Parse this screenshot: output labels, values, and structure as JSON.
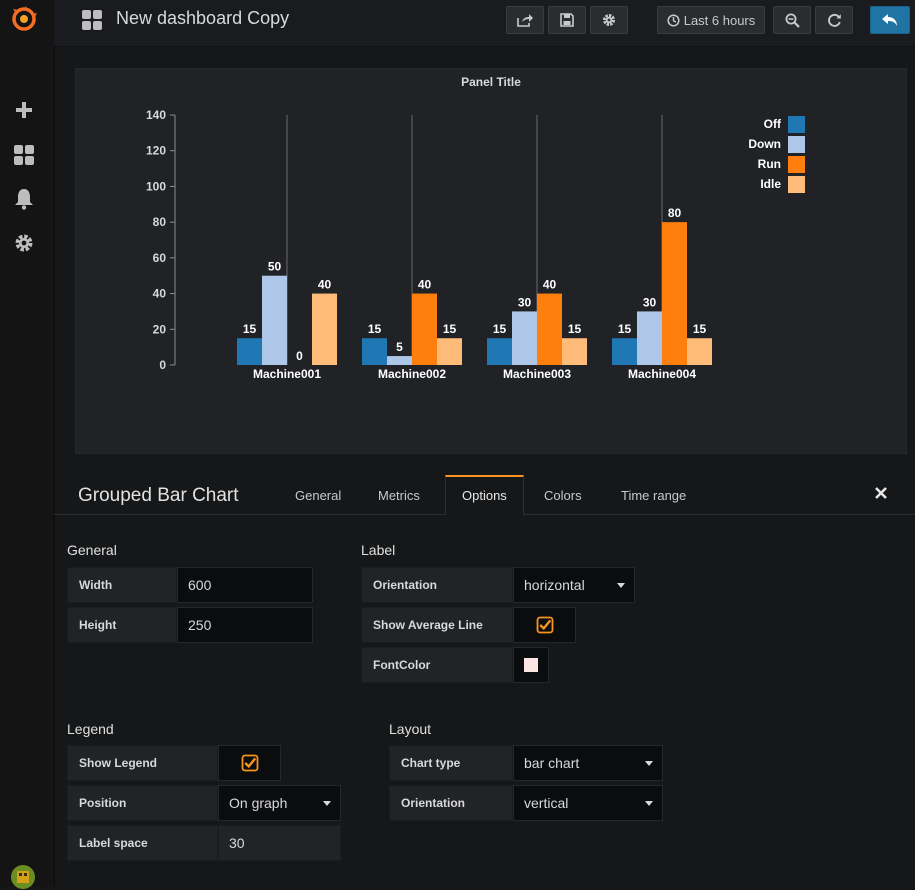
{
  "header": {
    "title": "New dashboard Copy",
    "time_range_label": "Last 6 hours"
  },
  "panel": {
    "title": "Panel Title"
  },
  "chart_data": {
    "type": "bar",
    "title": "Panel Title",
    "categories": [
      "Machine001",
      "Machine002",
      "Machine003",
      "Machine004"
    ],
    "series": [
      {
        "name": "Off",
        "color": "#1f77b4",
        "values": [
          15,
          15,
          15,
          15
        ]
      },
      {
        "name": "Down",
        "color": "#aec7e8",
        "values": [
          50,
          5,
          30,
          30
        ]
      },
      {
        "name": "Run",
        "color": "#ff7f0e",
        "values": [
          0,
          40,
          40,
          80
        ]
      },
      {
        "name": "Idle",
        "color": "#ffbb78",
        "values": [
          40,
          15,
          15,
          15
        ]
      }
    ],
    "ylim": [
      0,
      140
    ],
    "yticks": [
      0,
      20,
      40,
      60,
      80,
      100,
      120,
      140
    ],
    "legend_position": "top-right",
    "xlabel": "",
    "ylabel": ""
  },
  "editor": {
    "title": "Grouped Bar Chart",
    "tabs": {
      "general": "General",
      "metrics": "Metrics",
      "options": "Options",
      "colors": "Colors",
      "time_range": "Time range"
    },
    "general": {
      "title": "General",
      "width_label": "Width",
      "width_value": "600",
      "height_label": "Height",
      "height_value": "250"
    },
    "label": {
      "title": "Label",
      "orientation_label": "Orientation",
      "orientation_value": "horizontal",
      "avg_line_label": "Show Average Line",
      "fontcolor_label": "FontColor",
      "fontcolor_value": "#fde6e1"
    },
    "legend": {
      "title": "Legend",
      "show_label": "Show Legend",
      "position_label": "Position",
      "position_value": "On graph",
      "space_label": "Label space",
      "space_value": "30"
    },
    "layout": {
      "title": "Layout",
      "chart_type_label": "Chart type",
      "chart_type_value": "bar chart",
      "orientation_label": "Orientation",
      "orientation_value": "vertical"
    }
  },
  "colors": {
    "accent": "#f7941e",
    "primary_button": "#1f74a3"
  }
}
